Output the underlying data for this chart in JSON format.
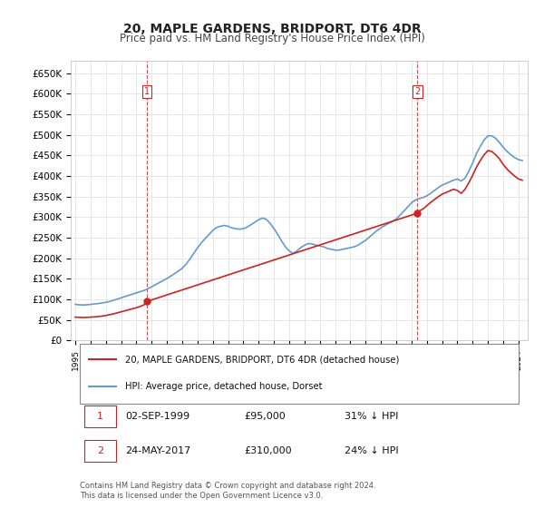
{
  "title": "20, MAPLE GARDENS, BRIDPORT, DT6 4DR",
  "subtitle": "Price paid vs. HM Land Registry's House Price Index (HPI)",
  "ylabel_ticks": [
    "£0",
    "£50K",
    "£100K",
    "£150K",
    "£200K",
    "£250K",
    "£300K",
    "£350K",
    "£400K",
    "£450K",
    "£500K",
    "£550K",
    "£600K",
    "£650K"
  ],
  "ytick_values": [
    0,
    50000,
    100000,
    150000,
    200000,
    250000,
    300000,
    350000,
    400000,
    450000,
    500000,
    550000,
    600000,
    650000
  ],
  "sale1_date": 1999.67,
  "sale1_price": 95000,
  "sale1_label": "1",
  "sale2_date": 2017.39,
  "sale2_price": 310000,
  "sale2_label": "2",
  "hpi_color": "#6699cc",
  "sale_color": "#cc2222",
  "vline_color": "#cc2222",
  "background_color": "#ffffff",
  "grid_color": "#dddddd",
  "legend_label1": "20, MAPLE GARDENS, BRIDPORT, DT6 4DR (detached house)",
  "legend_label2": "HPI: Average price, detached house, Dorset",
  "table_row1": [
    "1",
    "02-SEP-1999",
    "£95,000",
    "31% ↓ HPI"
  ],
  "table_row2": [
    "2",
    "24-MAY-2017",
    "£310,000",
    "24% ↓ HPI"
  ],
  "footnote": "Contains HM Land Registry data © Crown copyright and database right 2024.\nThis data is licensed under the Open Government Licence v3.0.",
  "hpi_data": {
    "years": [
      1995.0,
      1995.25,
      1995.5,
      1995.75,
      1996.0,
      1996.25,
      1996.5,
      1996.75,
      1997.0,
      1997.25,
      1997.5,
      1997.75,
      1998.0,
      1998.25,
      1998.5,
      1998.75,
      1999.0,
      1999.25,
      1999.5,
      1999.75,
      2000.0,
      2000.25,
      2000.5,
      2000.75,
      2001.0,
      2001.25,
      2001.5,
      2001.75,
      2002.0,
      2002.25,
      2002.5,
      2002.75,
      2003.0,
      2003.25,
      2003.5,
      2003.75,
      2004.0,
      2004.25,
      2004.5,
      2004.75,
      2005.0,
      2005.25,
      2005.5,
      2005.75,
      2006.0,
      2006.25,
      2006.5,
      2006.75,
      2007.0,
      2007.25,
      2007.5,
      2007.75,
      2008.0,
      2008.25,
      2008.5,
      2008.75,
      2009.0,
      2009.25,
      2009.5,
      2009.75,
      2010.0,
      2010.25,
      2010.5,
      2010.75,
      2011.0,
      2011.25,
      2011.5,
      2011.75,
      2012.0,
      2012.25,
      2012.5,
      2012.75,
      2013.0,
      2013.25,
      2013.5,
      2013.75,
      2014.0,
      2014.25,
      2014.5,
      2014.75,
      2015.0,
      2015.25,
      2015.5,
      2015.75,
      2016.0,
      2016.25,
      2016.5,
      2016.75,
      2017.0,
      2017.25,
      2017.5,
      2017.75,
      2018.0,
      2018.25,
      2018.5,
      2018.75,
      2019.0,
      2019.25,
      2019.5,
      2019.75,
      2020.0,
      2020.25,
      2020.5,
      2020.75,
      2021.0,
      2021.25,
      2021.5,
      2021.75,
      2022.0,
      2022.25,
      2022.5,
      2022.75,
      2023.0,
      2023.25,
      2023.5,
      2023.75,
      2024.0,
      2024.25
    ],
    "values": [
      88000,
      87000,
      86500,
      87000,
      88000,
      89000,
      90000,
      91500,
      93000,
      95000,
      98000,
      101000,
      104000,
      107000,
      110000,
      113000,
      116000,
      119000,
      122000,
      126000,
      131000,
      136000,
      141000,
      146000,
      151000,
      157000,
      163000,
      169000,
      176000,
      186000,
      198000,
      212000,
      226000,
      238000,
      248000,
      258000,
      268000,
      275000,
      278000,
      280000,
      278000,
      274000,
      272000,
      271000,
      272000,
      276000,
      282000,
      288000,
      294000,
      298000,
      295000,
      285000,
      272000,
      258000,
      242000,
      228000,
      218000,
      212000,
      218000,
      226000,
      232000,
      236000,
      235000,
      232000,
      230000,
      228000,
      224000,
      222000,
      220000,
      220000,
      222000,
      224000,
      226000,
      228000,
      232000,
      238000,
      244000,
      252000,
      260000,
      268000,
      274000,
      280000,
      285000,
      290000,
      296000,
      305000,
      315000,
      325000,
      335000,
      342000,
      345000,
      348000,
      352000,
      358000,
      365000,
      372000,
      378000,
      382000,
      386000,
      390000,
      393000,
      388000,
      395000,
      412000,
      432000,
      455000,
      472000,
      488000,
      498000,
      498000,
      492000,
      482000,
      470000,
      460000,
      452000,
      445000,
      440000,
      438000
    ]
  },
  "sale_hpi_data": {
    "years": [
      1999.67,
      2017.39
    ],
    "values": [
      95000,
      310000
    ]
  },
  "red_line_data": {
    "years": [
      1995.0,
      1995.25,
      1995.5,
      1995.75,
      1996.0,
      1996.25,
      1996.5,
      1996.75,
      1997.0,
      1997.25,
      1997.5,
      1997.75,
      1998.0,
      1998.25,
      1998.5,
      1998.75,
      1999.0,
      1999.25,
      1999.5,
      1999.67,
      1999.67,
      2017.39,
      2017.5,
      2017.75,
      2018.0,
      2018.25,
      2018.5,
      2018.75,
      2019.0,
      2019.25,
      2019.5,
      2019.75,
      2020.0,
      2020.25,
      2020.5,
      2020.75,
      2021.0,
      2021.25,
      2021.5,
      2021.75,
      2022.0,
      2022.25,
      2022.5,
      2022.75,
      2023.0,
      2023.25,
      2023.5,
      2023.75,
      2024.0,
      2024.25
    ],
    "values": [
      57000,
      56500,
      56000,
      56500,
      57000,
      57500,
      58500,
      59500,
      61000,
      63000,
      65000,
      67500,
      70000,
      72500,
      75000,
      77500,
      80000,
      83000,
      87000,
      95000,
      95000,
      310000,
      315000,
      320000,
      328000,
      336000,
      343000,
      350000,
      356000,
      360000,
      364000,
      368000,
      365000,
      358000,
      368000,
      384000,
      402000,
      422000,
      438000,
      452000,
      462000,
      460000,
      452000,
      442000,
      428000,
      417000,
      408000,
      400000,
      393000,
      390000
    ]
  }
}
